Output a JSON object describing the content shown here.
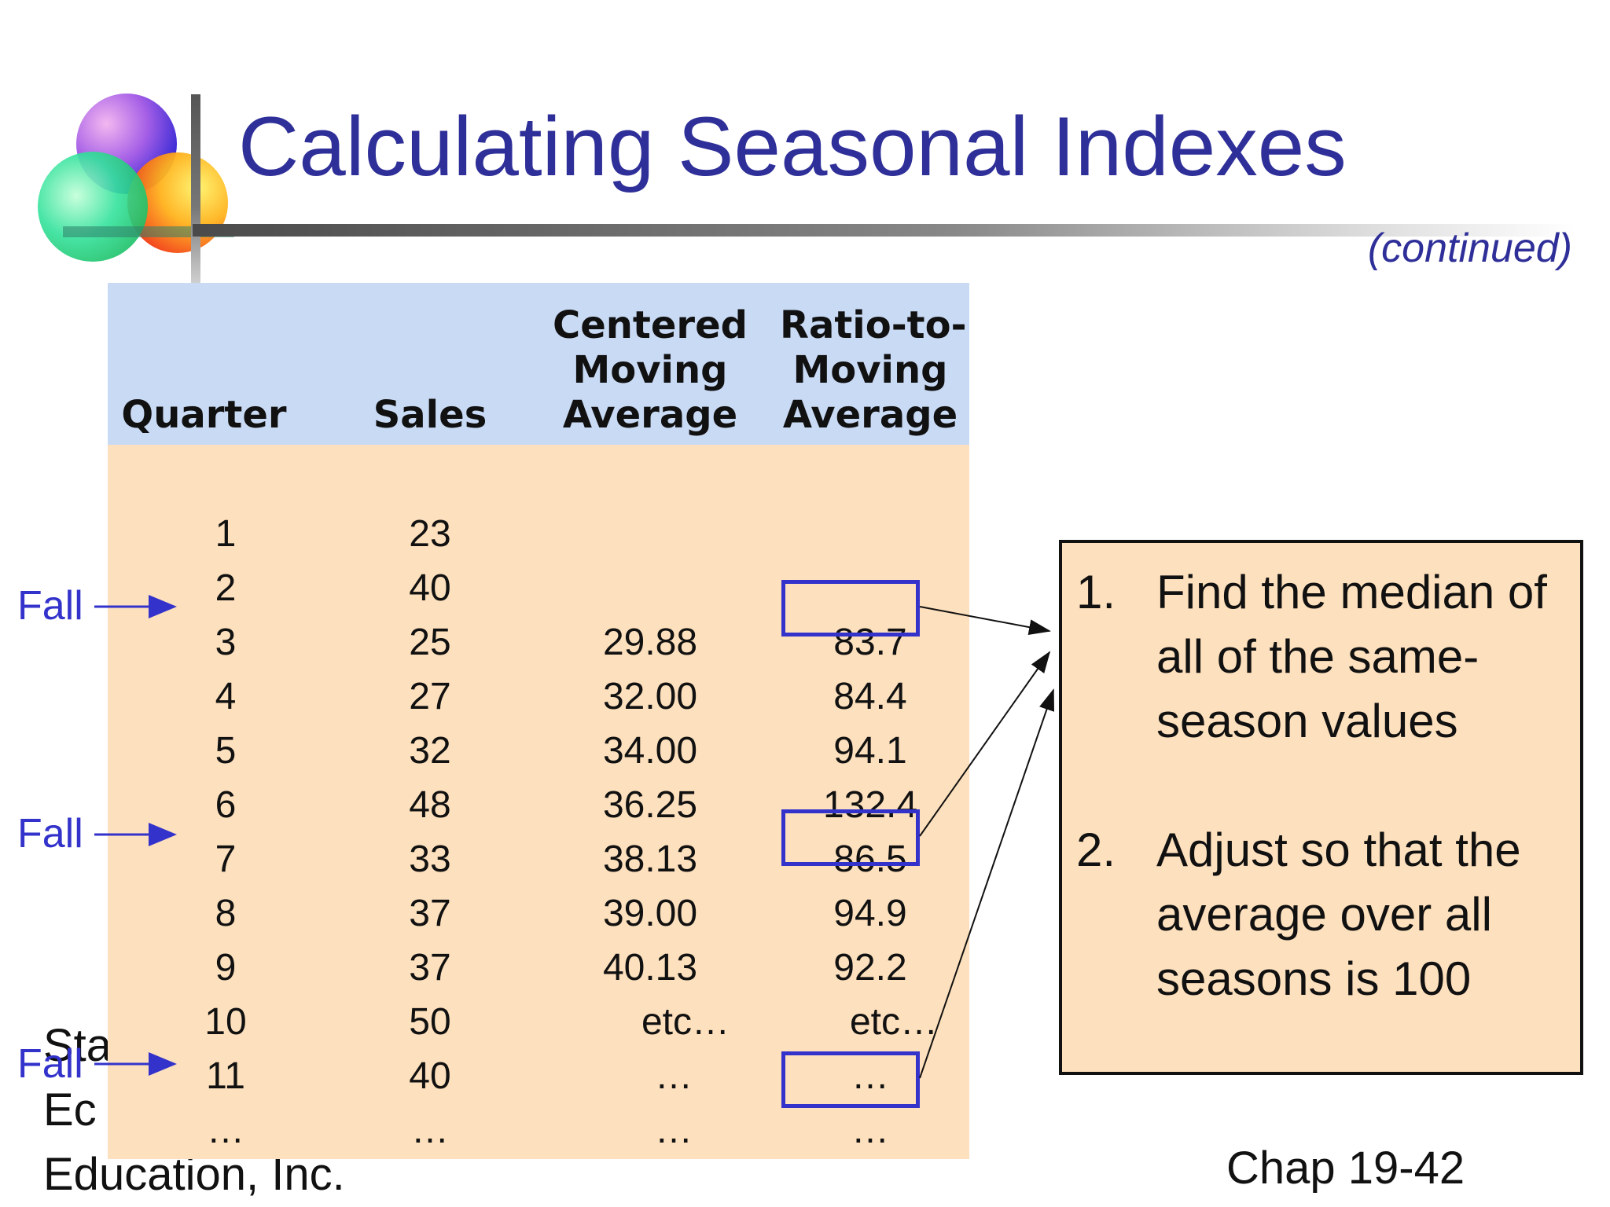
{
  "slide": {
    "title": "Calculating Seasonal Indexes",
    "subtitle": "(continued)",
    "footer_left_lines": [
      "Sta",
      "Ec",
      "Education, Inc."
    ],
    "footer_right": "Chap 19-42",
    "accent_color": "#2f2f99",
    "table_body_color": "#fde0bd",
    "table_header_color": "#c9daf5",
    "highlight_color": "#3333cc"
  },
  "table": {
    "headers": [
      [
        "Quarter"
      ],
      [
        "Sales"
      ],
      [
        "Centered",
        "Moving",
        "Average"
      ],
      [
        "Ratio-to-",
        "Moving",
        "Average"
      ]
    ],
    "rows": [
      [
        "1",
        "23",
        "",
        ""
      ],
      [
        "2",
        "40",
        "",
        ""
      ],
      [
        "3",
        "25",
        "29.88",
        "83.7"
      ],
      [
        "4",
        "27",
        "32.00",
        "84.4"
      ],
      [
        "5",
        "32",
        "34.00",
        "94.1"
      ],
      [
        "6",
        "48",
        "36.25",
        "132.4"
      ],
      [
        "7",
        "33",
        "38.13",
        "86.5"
      ],
      [
        "8",
        "37",
        "39.00",
        "94.9"
      ],
      [
        "9",
        "37",
        "40.13",
        "92.2"
      ],
      [
        "10",
        "50",
        "etc…",
        "etc…"
      ],
      [
        "11",
        "40",
        "…",
        "…"
      ],
      [
        "…",
        "…",
        "…",
        "…"
      ]
    ]
  },
  "fall_labels": [
    "Fall",
    "Fall",
    "Fall"
  ],
  "steps": [
    {
      "num": "1.",
      "text": "Find the median of all of the same-season values"
    },
    {
      "num": "2.",
      "text": "Adjust so that the average over all seasons is 100"
    }
  ]
}
